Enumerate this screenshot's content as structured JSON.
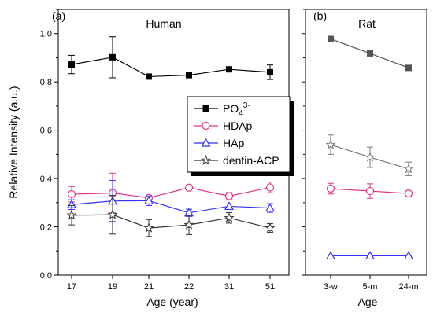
{
  "chart_data": [
    {
      "panel_label": "(a)",
      "type": "line",
      "title": "Human",
      "xlabel": "Age (year)",
      "ylabel": "Relative Intensity (a.u.)",
      "categories": [
        "17",
        "19",
        "21",
        "22",
        "31",
        "51"
      ],
      "ylim": [
        0,
        1.1
      ],
      "yticks": [
        "0.0",
        "0.2",
        "0.4",
        "0.6",
        "0.8",
        "1.0"
      ],
      "grid": false,
      "legend_position": "center-right",
      "series": [
        {
          "name": "PO4 3-",
          "color": "#000000",
          "marker": "square-filled",
          "values": [
            0.872,
            0.902,
            0.822,
            0.828,
            0.852,
            0.84
          ],
          "errors": [
            0.038,
            0.085,
            0.005,
            0.005,
            0.005,
            0.03
          ]
        },
        {
          "name": "HDAp",
          "color": "#e6318a",
          "marker": "circle-open",
          "values": [
            0.335,
            0.34,
            0.32,
            0.362,
            0.327,
            0.363
          ],
          "errors": [
            0.032,
            0.082,
            0.01,
            0.01,
            0.015,
            0.022
          ]
        },
        {
          "name": "HAp",
          "color": "#3333ff",
          "marker": "triangle-open",
          "values": [
            0.292,
            0.307,
            0.308,
            0.258,
            0.285,
            0.278
          ],
          "errors": [
            0.02,
            0.085,
            0.02,
            0.015,
            0.01,
            0.018
          ]
        },
        {
          "name": "dentin-ACP",
          "color": "#333333",
          "marker": "star-open",
          "values": [
            0.248,
            0.25,
            0.195,
            0.208,
            0.237,
            0.195
          ],
          "errors": [
            0.04,
            0.08,
            0.035,
            0.04,
            0.022,
            0.018
          ]
        }
      ]
    },
    {
      "panel_label": "(b)",
      "type": "line",
      "title": "Rat",
      "xlabel": "Age",
      "ylabel": "",
      "categories": [
        "3-w",
        "5-m",
        "24-m"
      ],
      "ylim": [
        0,
        1.1
      ],
      "grid": false,
      "series": [
        {
          "name": "PO4 3-",
          "color": "#555555",
          "marker": "square-filled",
          "values": [
            0.978,
            0.918,
            0.858
          ],
          "errors": [
            0.005,
            0.005,
            0.008
          ]
        },
        {
          "name": "HDAp",
          "color": "#e6318a",
          "marker": "circle-open",
          "values": [
            0.358,
            0.348,
            0.338
          ],
          "errors": [
            0.022,
            0.03,
            0.01
          ]
        },
        {
          "name": "HAp",
          "color": "#3333ff",
          "marker": "triangle-open",
          "values": [
            0.08,
            0.08,
            0.08
          ],
          "errors": [
            0.003,
            0.003,
            0.003
          ]
        },
        {
          "name": "dentin-ACP",
          "color": "#777777",
          "marker": "star-open",
          "values": [
            0.54,
            0.488,
            0.44
          ],
          "errors": [
            0.04,
            0.042,
            0.028
          ]
        }
      ]
    }
  ],
  "legend": {
    "items": [
      {
        "label_main": "PO",
        "label_sub": "4",
        "label_sup": "3-",
        "color": "#000000",
        "marker": "square-filled"
      },
      {
        "label_main": "HDAp",
        "color": "#e6318a",
        "marker": "circle-open"
      },
      {
        "label_main": "HAp",
        "color": "#3333ff",
        "marker": "triangle-open"
      },
      {
        "label_main": "dentin-ACP",
        "color": "#333333",
        "marker": "star-open"
      }
    ]
  }
}
